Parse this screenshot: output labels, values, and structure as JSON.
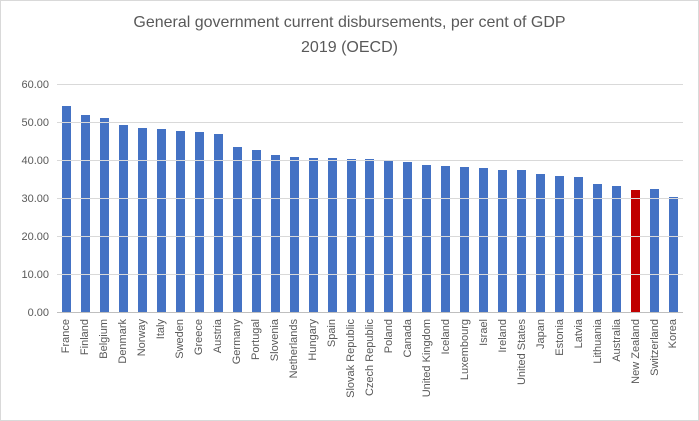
{
  "chart_data": {
    "type": "bar",
    "title_line1": "General government current disbursements, per cent of GDP",
    "title_line2": "2019 (OECD)",
    "categories": [
      "France",
      "Finland",
      "Belgium",
      "Denmark",
      "Norway",
      "Italy",
      "Sweden",
      "Greece",
      "Austria",
      "Germany",
      "Portugal",
      "Slovenia",
      "Netherlands",
      "Hungary",
      "Spain",
      "Slovak Republic",
      "Czech Republic",
      "Poland",
      "Canada",
      "United Kingdom",
      "Iceland",
      "Luxembourg",
      "Israel",
      "Ireland",
      "United States",
      "Japan",
      "Estonia",
      "Latvia",
      "Lithuania",
      "Australia",
      "New Zealand",
      "Switzerland",
      "Korea"
    ],
    "values": [
      54.5,
      52.0,
      51.2,
      49.5,
      48.8,
      48.5,
      48.0,
      47.5,
      47.2,
      43.7,
      42.8,
      41.5,
      41.0,
      40.9,
      40.9,
      40.5,
      40.4,
      40.0,
      39.8,
      38.9,
      38.6,
      38.3,
      38.2,
      37.7,
      37.7,
      36.7,
      36.1,
      35.7,
      33.9,
      33.3,
      32.4,
      32.6,
      30.4
    ],
    "highlight_category": "New Zealand",
    "xlabel": "",
    "ylabel": "",
    "ylim": [
      0,
      60
    ],
    "ytick_labels": [
      "0.00",
      "10.00",
      "20.00",
      "30.00",
      "40.00",
      "50.00",
      "60.00"
    ],
    "grid": true,
    "legend_position": "none",
    "colors": {
      "bar": "#4472c4",
      "highlight": "#c00000",
      "gridline": "#d9d9d9",
      "axis_line": "#bfbfbf",
      "text": "#595959",
      "background": "#ffffff",
      "chart_border": "#d9d9d9"
    }
  }
}
